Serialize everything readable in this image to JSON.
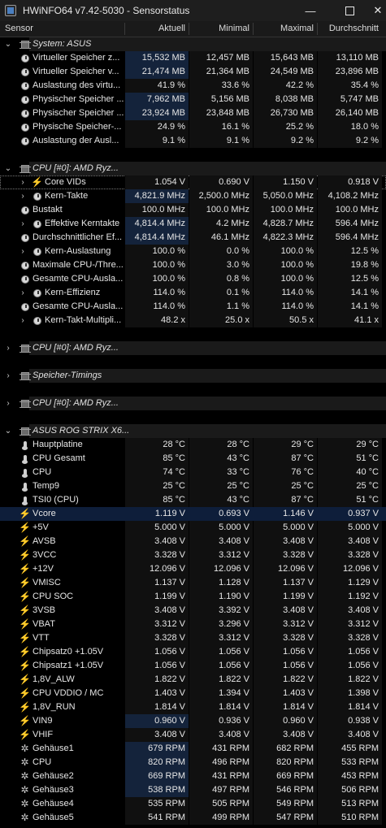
{
  "window": {
    "title": "HWiNFO64 v7.42-5030 - Sensorstatus",
    "minimize": "—",
    "close": "✕"
  },
  "columns": {
    "sensor": "Sensor",
    "current": "Aktuell",
    "min": "Minimal",
    "max": "Maximal",
    "avg": "Durchschnitt"
  },
  "rows": [
    {
      "type": "group",
      "label": "System: ASUS",
      "expanded": true,
      "indent": 0,
      "icon": "chip-icon"
    },
    {
      "type": "item",
      "label": "Virtueller Speicher z...",
      "icon": "gauge-icon",
      "hl": true,
      "v": [
        "15,532 MB",
        "12,457 MB",
        "15,643 MB",
        "13,110 MB"
      ]
    },
    {
      "type": "item",
      "label": "Virtueller Speicher v...",
      "icon": "gauge-icon",
      "hl": true,
      "v": [
        "21,474 MB",
        "21,364 MB",
        "24,549 MB",
        "23,896 MB"
      ]
    },
    {
      "type": "item",
      "label": "Auslastung des virtu...",
      "icon": "gauge-icon",
      "v": [
        "41.9 %",
        "33.6 %",
        "42.2 %",
        "35.4 %"
      ]
    },
    {
      "type": "item",
      "label": "Physischer Speicher ...",
      "icon": "gauge-icon",
      "hl": true,
      "v": [
        "7,962 MB",
        "5,156 MB",
        "8,038 MB",
        "5,747 MB"
      ]
    },
    {
      "type": "item",
      "label": "Physischer Speicher ...",
      "icon": "gauge-icon",
      "hl": true,
      "v": [
        "23,924 MB",
        "23,848 MB",
        "26,730 MB",
        "26,140 MB"
      ]
    },
    {
      "type": "item",
      "label": "Physische Speicher-...",
      "icon": "gauge-icon",
      "v": [
        "24.9 %",
        "16.1 %",
        "25.2 %",
        "18.0 %"
      ]
    },
    {
      "type": "item",
      "label": "Auslastung der Ausl...",
      "icon": "gauge-icon",
      "v": [
        "9.1 %",
        "9.1 %",
        "9.2 %",
        "9.2 %"
      ]
    },
    {
      "type": "gap"
    },
    {
      "type": "group",
      "label": "CPU [#0]: AMD Ryz...",
      "expanded": true,
      "indent": 0,
      "icon": "chip-icon"
    },
    {
      "type": "item",
      "label": "Core VIDs",
      "icon": "bolt-icon",
      "expander": true,
      "indent": 1,
      "sel": true,
      "v": [
        "1.054 V",
        "0.690 V",
        "1.150 V",
        "0.918 V"
      ]
    },
    {
      "type": "item",
      "label": "Kern-Takte",
      "icon": "gauge-icon",
      "expander": true,
      "indent": 1,
      "hl": true,
      "v": [
        "4,821.9 MHz",
        "2,500.0 MHz",
        "5,050.0 MHz",
        "4,108.2 MHz"
      ]
    },
    {
      "type": "item",
      "label": "Bustakt",
      "icon": "gauge-icon",
      "v": [
        "100.0 MHz",
        "100.0 MHz",
        "100.0 MHz",
        "100.0 MHz"
      ]
    },
    {
      "type": "item",
      "label": "Effektive Kerntakte",
      "icon": "gauge-icon",
      "expander": true,
      "indent": 1,
      "hl": true,
      "v": [
        "4,814.4 MHz",
        "4.2 MHz",
        "4,828.7 MHz",
        "596.4 MHz"
      ]
    },
    {
      "type": "item",
      "label": "Durchschnittlicher Ef...",
      "icon": "gauge-icon",
      "hl": true,
      "v": [
        "4,814.4 MHz",
        "46.1 MHz",
        "4,822.3 MHz",
        "596.4 MHz"
      ]
    },
    {
      "type": "item",
      "label": "Kern-Auslastung",
      "icon": "gauge-icon",
      "expander": true,
      "indent": 1,
      "v": [
        "100.0 %",
        "0.0 %",
        "100.0 %",
        "12.5 %"
      ]
    },
    {
      "type": "item",
      "label": "Maximale CPU-/Thre...",
      "icon": "gauge-icon",
      "v": [
        "100.0 %",
        "3.0 %",
        "100.0 %",
        "19.8 %"
      ]
    },
    {
      "type": "item",
      "label": "Gesamte CPU-Ausla...",
      "icon": "gauge-icon",
      "v": [
        "100.0 %",
        "0.8 %",
        "100.0 %",
        "12.5 %"
      ]
    },
    {
      "type": "item",
      "label": "Kern-Effizienz",
      "icon": "gauge-icon",
      "expander": true,
      "indent": 1,
      "v": [
        "114.0 %",
        "0.1 %",
        "114.0 %",
        "14.1 %"
      ]
    },
    {
      "type": "item",
      "label": "Gesamte CPU-Ausla...",
      "icon": "gauge-icon",
      "v": [
        "114.0 %",
        "1.1 %",
        "114.0 %",
        "14.1 %"
      ]
    },
    {
      "type": "item",
      "label": "Kern-Takt-Multipli...",
      "icon": "gauge-icon",
      "expander": true,
      "indent": 1,
      "v": [
        "48.2 x",
        "25.0 x",
        "50.5 x",
        "41.1 x"
      ]
    },
    {
      "type": "gap"
    },
    {
      "type": "group",
      "label": "CPU [#0]: AMD Ryz...",
      "expanded": false,
      "indent": 0,
      "icon": "chip-icon"
    },
    {
      "type": "gap"
    },
    {
      "type": "group",
      "label": "Speicher-Timings",
      "expanded": false,
      "indent": 0,
      "icon": "chip-icon"
    },
    {
      "type": "gap"
    },
    {
      "type": "group",
      "label": "CPU [#0]: AMD Ryz...",
      "expanded": false,
      "indent": 0,
      "icon": "chip-icon"
    },
    {
      "type": "gap"
    },
    {
      "type": "group",
      "label": "ASUS ROG STRIX X6...",
      "expanded": true,
      "indent": 0,
      "icon": "chip-icon"
    },
    {
      "type": "item",
      "label": "Hauptplatine",
      "icon": "thermometer-icon",
      "v": [
        "28 °C",
        "28 °C",
        "29 °C",
        "29 °C"
      ]
    },
    {
      "type": "item",
      "label": "CPU Gesamt",
      "icon": "thermometer-icon",
      "v": [
        "85 °C",
        "43 °C",
        "87 °C",
        "51 °C"
      ]
    },
    {
      "type": "item",
      "label": "CPU",
      "icon": "thermometer-icon",
      "v": [
        "74 °C",
        "33 °C",
        "76 °C",
        "40 °C"
      ]
    },
    {
      "type": "item",
      "label": "Temp9",
      "icon": "thermometer-icon",
      "v": [
        "25 °C",
        "25 °C",
        "25 °C",
        "25 °C"
      ]
    },
    {
      "type": "item",
      "label": "TSI0 (CPU)",
      "icon": "thermometer-icon",
      "v": [
        "85 °C",
        "43 °C",
        "87 °C",
        "51 °C"
      ]
    },
    {
      "type": "item",
      "label": "Vcore",
      "icon": "bolt-icon",
      "rowsel": true,
      "v": [
        "1.119 V",
        "0.693 V",
        "1.146 V",
        "0.937 V"
      ]
    },
    {
      "type": "item",
      "label": "+5V",
      "icon": "bolt-icon",
      "v": [
        "5.000 V",
        "5.000 V",
        "5.000 V",
        "5.000 V"
      ]
    },
    {
      "type": "item",
      "label": "AVSB",
      "icon": "bolt-icon",
      "v": [
        "3.408 V",
        "3.408 V",
        "3.408 V",
        "3.408 V"
      ]
    },
    {
      "type": "item",
      "label": "3VCC",
      "icon": "bolt-icon",
      "v": [
        "3.328 V",
        "3.312 V",
        "3.328 V",
        "3.328 V"
      ]
    },
    {
      "type": "item",
      "label": "+12V",
      "icon": "bolt-icon",
      "v": [
        "12.096 V",
        "12.096 V",
        "12.096 V",
        "12.096 V"
      ]
    },
    {
      "type": "item",
      "label": "VMISC",
      "icon": "bolt-icon",
      "v": [
        "1.137 V",
        "1.128 V",
        "1.137 V",
        "1.129 V"
      ]
    },
    {
      "type": "item",
      "label": "CPU SOC",
      "icon": "bolt-icon",
      "v": [
        "1.199 V",
        "1.190 V",
        "1.199 V",
        "1.192 V"
      ]
    },
    {
      "type": "item",
      "label": "3VSB",
      "icon": "bolt-icon",
      "v": [
        "3.408 V",
        "3.392 V",
        "3.408 V",
        "3.408 V"
      ]
    },
    {
      "type": "item",
      "label": "VBAT",
      "icon": "bolt-icon",
      "v": [
        "3.312 V",
        "3.296 V",
        "3.312 V",
        "3.312 V"
      ]
    },
    {
      "type": "item",
      "label": "VTT",
      "icon": "bolt-icon",
      "v": [
        "3.328 V",
        "3.312 V",
        "3.328 V",
        "3.328 V"
      ]
    },
    {
      "type": "item",
      "label": "Chipsatz0 +1.05V",
      "icon": "bolt-icon",
      "v": [
        "1.056 V",
        "1.056 V",
        "1.056 V",
        "1.056 V"
      ]
    },
    {
      "type": "item",
      "label": "Chipsatz1 +1.05V",
      "icon": "bolt-icon",
      "v": [
        "1.056 V",
        "1.056 V",
        "1.056 V",
        "1.056 V"
      ]
    },
    {
      "type": "item",
      "label": "1,8V_ALW",
      "icon": "bolt-icon",
      "v": [
        "1.822 V",
        "1.822 V",
        "1.822 V",
        "1.822 V"
      ]
    },
    {
      "type": "item",
      "label": "CPU VDDIO / MC",
      "icon": "bolt-icon",
      "v": [
        "1.403 V",
        "1.394 V",
        "1.403 V",
        "1.398 V"
      ]
    },
    {
      "type": "item",
      "label": "1,8V_RUN",
      "icon": "bolt-icon",
      "v": [
        "1.814 V",
        "1.814 V",
        "1.814 V",
        "1.814 V"
      ]
    },
    {
      "type": "item",
      "label": "VIN9",
      "icon": "bolt-icon",
      "hl": true,
      "v": [
        "0.960 V",
        "0.936 V",
        "0.960 V",
        "0.938 V"
      ]
    },
    {
      "type": "item",
      "label": "VHIF",
      "icon": "bolt-icon",
      "v": [
        "3.408 V",
        "3.408 V",
        "3.408 V",
        "3.408 V"
      ]
    },
    {
      "type": "item",
      "label": "Gehäuse1",
      "icon": "fan-icon",
      "hl": true,
      "v": [
        "679 RPM",
        "431 RPM",
        "682 RPM",
        "455 RPM"
      ]
    },
    {
      "type": "item",
      "label": "CPU",
      "icon": "fan-icon",
      "hl": true,
      "v": [
        "820 RPM",
        "496 RPM",
        "820 RPM",
        "533 RPM"
      ]
    },
    {
      "type": "item",
      "label": "Gehäuse2",
      "icon": "fan-icon",
      "hl": true,
      "v": [
        "669 RPM",
        "431 RPM",
        "669 RPM",
        "453 RPM"
      ]
    },
    {
      "type": "item",
      "label": "Gehäuse3",
      "icon": "fan-icon",
      "hl": true,
      "v": [
        "538 RPM",
        "497 RPM",
        "546 RPM",
        "506 RPM"
      ]
    },
    {
      "type": "item",
      "label": "Gehäuse4",
      "icon": "fan-icon",
      "v": [
        "535 RPM",
        "505 RPM",
        "549 RPM",
        "513 RPM"
      ]
    },
    {
      "type": "item",
      "label": "Gehäuse5",
      "icon": "fan-icon",
      "v": [
        "541 RPM",
        "499 RPM",
        "547 RPM",
        "510 RPM"
      ]
    }
  ]
}
